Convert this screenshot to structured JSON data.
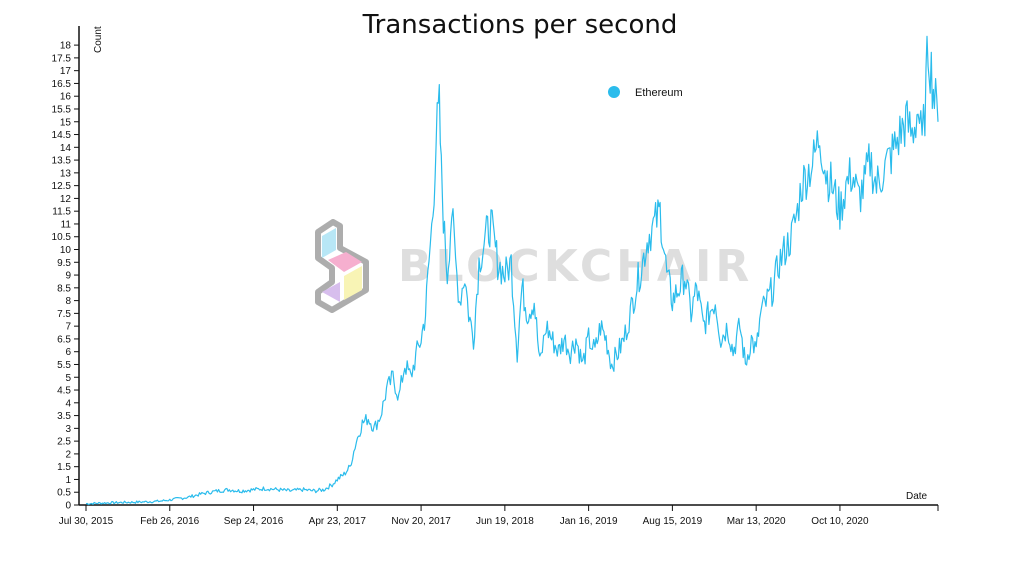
{
  "chart_data": {
    "type": "line",
    "title": "Transactions per second",
    "xlabel": "Date",
    "ylabel": "Count",
    "ylim": [
      0,
      18.2
    ],
    "yticks": [
      0,
      0.5,
      1,
      1.5,
      2,
      2.5,
      3,
      3.5,
      4,
      4.5,
      5,
      5.5,
      6,
      6.5,
      7,
      7.5,
      8,
      8.5,
      9,
      9.5,
      10,
      10.5,
      11,
      11.5,
      12,
      12.5,
      13,
      13.5,
      14,
      14.5,
      15,
      15.5,
      16,
      16.5,
      17,
      17.5,
      18
    ],
    "xlim": [
      "2015-07-30",
      "2021-06-14"
    ],
    "xticks": [
      "2015-07-30",
      "2016-02-26",
      "2016-09-24",
      "2017-04-23",
      "2017-11-20",
      "2018-06-19",
      "2019-01-16",
      "2019-08-15",
      "2020-03-13",
      "2020-10-10"
    ],
    "xtick_labels": [
      "Jul 30, 2015",
      "Feb 26, 2016",
      "Sep 24, 2016",
      "Apr 23, 2017",
      "Nov 20, 2017",
      "Jun 19, 2018",
      "Jan 16, 2019",
      "Aug 15, 2019",
      "Mar 13, 2020",
      "Oct 10, 2020"
    ],
    "legend_position": "top-right",
    "grid": false,
    "series": [
      {
        "name": "Ethereum",
        "color": "#2bbcec",
        "x": [
          "2015-07-30",
          "2015-09-15",
          "2015-11-01",
          "2015-12-20",
          "2016-02-01",
          "2016-02-26",
          "2016-04-10",
          "2016-05-20",
          "2016-06-25",
          "2016-07-25",
          "2016-08-20",
          "2016-09-24",
          "2016-10-25",
          "2016-11-25",
          "2016-12-25",
          "2017-01-25",
          "2017-02-25",
          "2017-03-20",
          "2017-04-10",
          "2017-04-23",
          "2017-05-10",
          "2017-05-25",
          "2017-06-10",
          "2017-06-25",
          "2017-07-10",
          "2017-07-25",
          "2017-08-10",
          "2017-08-25",
          "2017-09-10",
          "2017-09-25",
          "2017-10-10",
          "2017-10-25",
          "2017-11-10",
          "2017-11-20",
          "2017-12-01",
          "2017-12-10",
          "2017-12-20",
          "2017-12-28",
          "2018-01-05",
          "2018-01-10",
          "2018-01-18",
          "2018-01-25",
          "2018-02-05",
          "2018-02-15",
          "2018-02-25",
          "2018-03-10",
          "2018-03-20",
          "2018-04-01",
          "2018-04-15",
          "2018-05-01",
          "2018-05-15",
          "2018-06-01",
          "2018-06-19",
          "2018-07-05",
          "2018-07-20",
          "2018-08-01",
          "2018-08-15",
          "2018-09-01",
          "2018-09-15",
          "2018-10-01",
          "2018-10-15",
          "2018-11-01",
          "2018-11-15",
          "2018-12-01",
          "2018-12-15",
          "2019-01-01",
          "2019-01-16",
          "2019-02-01",
          "2019-02-15",
          "2019-03-01",
          "2019-03-15",
          "2019-04-01",
          "2019-04-15",
          "2019-05-01",
          "2019-05-15",
          "2019-06-01",
          "2019-06-15",
          "2019-07-01",
          "2019-07-15",
          "2019-08-01",
          "2019-08-15",
          "2019-09-01",
          "2019-09-15",
          "2019-10-01",
          "2019-10-15",
          "2019-11-01",
          "2019-11-15",
          "2019-12-01",
          "2019-12-15",
          "2020-01-01",
          "2020-01-15",
          "2020-02-01",
          "2020-02-15",
          "2020-03-01",
          "2020-03-13",
          "2020-03-25",
          "2020-04-10",
          "2020-04-25",
          "2020-05-10",
          "2020-05-25",
          "2020-06-10",
          "2020-06-25",
          "2020-07-05",
          "2020-07-20",
          "2020-08-05",
          "2020-08-20",
          "2020-09-05",
          "2020-09-20",
          "2020-10-10",
          "2020-10-25",
          "2020-11-10",
          "2020-11-25",
          "2020-12-10",
          "2020-12-25",
          "2021-01-10",
          "2021-01-25",
          "2021-02-10",
          "2021-02-25",
          "2021-03-10",
          "2021-03-25",
          "2021-04-10",
          "2021-04-25",
          "2021-05-05",
          "2021-05-12",
          "2021-05-20",
          "2021-05-28",
          "2021-06-05",
          "2021-06-14"
        ],
        "values": [
          0.05,
          0.08,
          0.1,
          0.12,
          0.15,
          0.2,
          0.3,
          0.45,
          0.55,
          0.6,
          0.55,
          0.6,
          0.65,
          0.6,
          0.55,
          0.6,
          0.55,
          0.6,
          0.8,
          1.0,
          1.2,
          1.5,
          2.5,
          3.2,
          3.4,
          3.0,
          3.5,
          4.5,
          5.0,
          4.2,
          5.5,
          5.0,
          6.0,
          6.5,
          7.5,
          9.5,
          11.5,
          14.5,
          15.5,
          13.0,
          10.5,
          9.0,
          11.5,
          9.5,
          8.0,
          9.0,
          7.5,
          6.5,
          9.5,
          10.5,
          11.0,
          9.5,
          9.0,
          9.5,
          6.0,
          8.5,
          7.5,
          8.0,
          5.5,
          7.0,
          6.5,
          6.0,
          6.5,
          6.0,
          6.5,
          5.5,
          6.5,
          6.0,
          7.0,
          6.5,
          5.5,
          6.0,
          6.5,
          7.5,
          8.5,
          9.5,
          10.5,
          11.0,
          11.5,
          9.0,
          8.0,
          8.5,
          9.0,
          7.5,
          8.5,
          7.0,
          7.5,
          8.0,
          6.5,
          7.0,
          6.0,
          7.0,
          5.5,
          6.5,
          6.0,
          7.5,
          8.0,
          8.5,
          9.5,
          10.0,
          10.5,
          11.5,
          12.5,
          13.0,
          13.5,
          14.5,
          13.0,
          12.5,
          11.5,
          12.5,
          13.0,
          12.0,
          12.5,
          13.5,
          12.5,
          13.0,
          13.5,
          14.0,
          14.5,
          15.0,
          14.5,
          15.5,
          14.0,
          15.5,
          18.0,
          17.0,
          16.0,
          15.0
        ]
      }
    ],
    "legend": {
      "label": "Ethereum"
    },
    "watermark": {
      "text": "BLOCKCHAIR"
    }
  }
}
